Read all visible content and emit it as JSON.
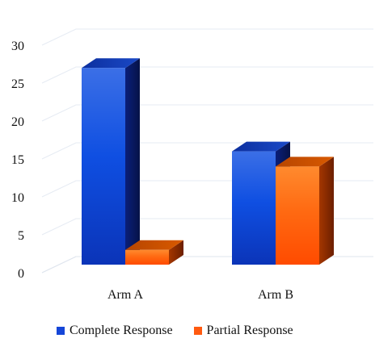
{
  "chart_data": {
    "type": "bar",
    "title": "",
    "xlabel": "",
    "ylabel": "",
    "categories": [
      "Arm A",
      "Arm B"
    ],
    "series": [
      {
        "name": "Complete Response",
        "values": [
          27,
          16
        ],
        "color": "#1546d8"
      },
      {
        "name": "Partial Response",
        "values": [
          3,
          14
        ],
        "color": "#ff5a10"
      }
    ],
    "ylim": [
      0,
      30
    ],
    "yticks": [
      0,
      5,
      10,
      15,
      20,
      25,
      30
    ],
    "grid": true,
    "legend_position": "bottom",
    "style": "3d"
  }
}
